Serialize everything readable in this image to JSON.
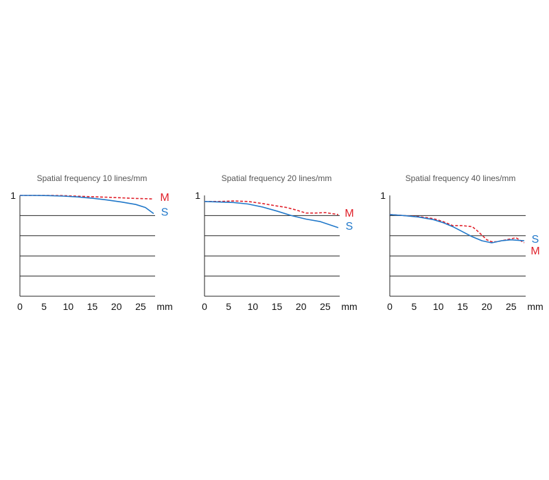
{
  "chart_data": [
    {
      "type": "line",
      "title": "Spatial frequency 10 lines/mm",
      "xlabel": "mm",
      "x_ticks": [
        0,
        5,
        10,
        15,
        20,
        25
      ],
      "xlim": [
        0,
        28
      ],
      "ylim": [
        0,
        1
      ],
      "y_ticks_label": "1",
      "gridlines_y": [
        0.2,
        0.4,
        0.6,
        0.8
      ],
      "series": [
        {
          "name": "M",
          "color": "#e0202a",
          "style": "dashed",
          "x": [
            0,
            3,
            6,
            9,
            12,
            15,
            18,
            21,
            24,
            27.7
          ],
          "y": [
            1.0,
            1.0,
            1.0,
            0.998,
            0.992,
            0.987,
            0.982,
            0.976,
            0.97,
            0.965
          ]
        },
        {
          "name": "S",
          "color": "#1f77c9",
          "style": "solid",
          "x": [
            0,
            3,
            6,
            9,
            12,
            15,
            18,
            21,
            24,
            26,
            27.7
          ],
          "y": [
            1.0,
            1.0,
            0.998,
            0.993,
            0.985,
            0.972,
            0.955,
            0.935,
            0.91,
            0.88,
            0.82
          ]
        }
      ]
    },
    {
      "type": "line",
      "title": "Spatial frequency 20 lines/mm",
      "xlabel": "mm",
      "x_ticks": [
        0,
        5,
        10,
        15,
        20,
        25
      ],
      "xlim": [
        0,
        28
      ],
      "ylim": [
        0,
        1
      ],
      "y_ticks_label": "1",
      "gridlines_y": [
        0.2,
        0.4,
        0.6,
        0.8
      ],
      "series": [
        {
          "name": "M",
          "color": "#e0202a",
          "style": "dashed",
          "x": [
            0,
            3,
            6,
            9,
            12,
            15,
            17,
            19,
            21,
            23,
            25,
            27.7
          ],
          "y": [
            0.94,
            0.94,
            0.945,
            0.94,
            0.92,
            0.895,
            0.88,
            0.855,
            0.825,
            0.825,
            0.83,
            0.81
          ]
        },
        {
          "name": "S",
          "color": "#1f77c9",
          "style": "solid",
          "x": [
            0,
            3,
            6,
            9,
            12,
            15,
            18,
            21,
            24,
            27.7
          ],
          "y": [
            0.94,
            0.935,
            0.93,
            0.915,
            0.885,
            0.845,
            0.8,
            0.765,
            0.74,
            0.68
          ]
        }
      ]
    },
    {
      "type": "line",
      "title": "Spatial frequency 40 lines/mm",
      "xlabel": "mm",
      "x_ticks": [
        0,
        5,
        10,
        15,
        20,
        25
      ],
      "xlim": [
        0,
        28
      ],
      "ylim": [
        0,
        1
      ],
      "y_ticks_label": "1",
      "gridlines_y": [
        0.2,
        0.4,
        0.6,
        0.8
      ],
      "series": [
        {
          "name": "M",
          "color": "#e0202a",
          "style": "dashed",
          "x": [
            0,
            3,
            6,
            9,
            11,
            13,
            15,
            17,
            18,
            20,
            21,
            22,
            24,
            26,
            27.7
          ],
          "y": [
            0.81,
            0.8,
            0.79,
            0.77,
            0.74,
            0.7,
            0.7,
            0.69,
            0.65,
            0.56,
            0.54,
            0.54,
            0.56,
            0.58,
            0.53
          ]
        },
        {
          "name": "S",
          "color": "#1f77c9",
          "style": "solid",
          "x": [
            0,
            3,
            6,
            9,
            11,
            13,
            15,
            17,
            19,
            21,
            23,
            25,
            27.7
          ],
          "y": [
            0.81,
            0.8,
            0.785,
            0.76,
            0.73,
            0.69,
            0.64,
            0.59,
            0.55,
            0.53,
            0.55,
            0.56,
            0.55
          ]
        }
      ]
    }
  ]
}
